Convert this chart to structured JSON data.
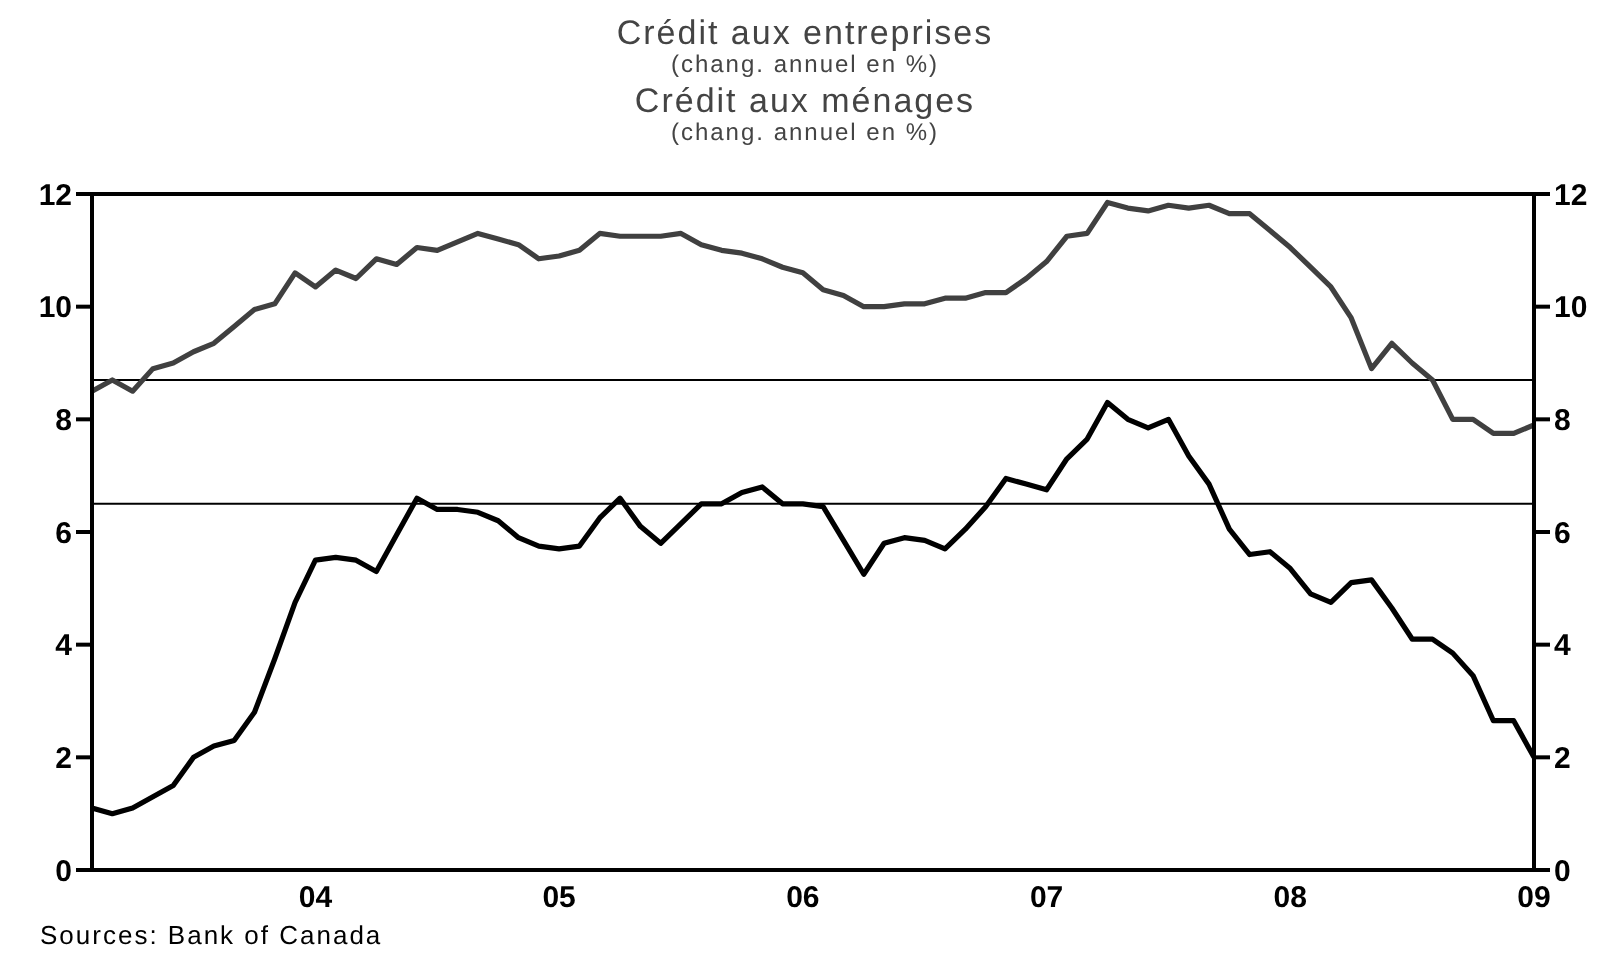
{
  "chart_data": {
    "type": "line",
    "title": "Crédit aux entreprises",
    "subtitle": "(chang. annuel en %)",
    "annotations": [
      "Crédit aux ménages",
      "(chang. annuel en %)",
      "Sources:  Bank of Canada"
    ],
    "x": [
      "2003-02",
      "2003-03",
      "2003-04",
      "2003-05",
      "2003-06",
      "2003-07",
      "2003-08",
      "2003-09",
      "2003-10",
      "2003-11",
      "2003-12",
      "2004-01",
      "2004-02",
      "2004-03",
      "2004-04",
      "2004-05",
      "2004-06",
      "2004-07",
      "2004-08",
      "2004-09",
      "2004-10",
      "2004-11",
      "2004-12",
      "2005-01",
      "2005-02",
      "2005-03",
      "2005-04",
      "2005-05",
      "2005-06",
      "2005-07",
      "2005-08",
      "2005-09",
      "2005-10",
      "2005-11",
      "2005-12",
      "2006-01",
      "2006-02",
      "2006-03",
      "2006-04",
      "2006-05",
      "2006-06",
      "2006-07",
      "2006-08",
      "2006-09",
      "2006-10",
      "2006-11",
      "2006-12",
      "2007-01",
      "2007-02",
      "2007-03",
      "2007-04",
      "2007-05",
      "2007-06",
      "2007-07",
      "2007-08",
      "2007-09",
      "2007-10",
      "2007-11",
      "2007-12",
      "2008-01",
      "2008-02",
      "2008-03",
      "2008-04",
      "2008-05",
      "2008-06",
      "2008-07",
      "2008-08",
      "2008-09",
      "2008-10",
      "2008-11",
      "2008-12",
      "2009-01"
    ],
    "series": [
      {
        "color": "#404040",
        "values": [
          8.5,
          8.7,
          8.5,
          8.9,
          9.0,
          9.2,
          9.35,
          9.65,
          9.95,
          10.05,
          10.6,
          10.35,
          10.65,
          10.5,
          10.85,
          10.75,
          11.05,
          11.0,
          11.15,
          11.3,
          11.2,
          11.1,
          10.85,
          10.9,
          11.0,
          11.3,
          11.25,
          11.25,
          11.25,
          11.3,
          11.1,
          11.0,
          10.95,
          10.85,
          10.7,
          10.6,
          10.3,
          10.2,
          10.0,
          10.0,
          10.05,
          10.05,
          10.15,
          10.15,
          10.25,
          10.25,
          10.5,
          10.8,
          11.25,
          11.3,
          11.85,
          11.75,
          11.7,
          11.8,
          11.75,
          11.8,
          11.65,
          11.65,
          11.35,
          11.05,
          10.7,
          10.35,
          9.8,
          8.9,
          9.35,
          9.0,
          8.7,
          8.0,
          8.0,
          7.75,
          7.75,
          7.9
        ]
      },
      {
        "color": "#000000",
        "values": [
          1.1,
          1.0,
          1.1,
          1.3,
          1.5,
          2.0,
          2.2,
          2.3,
          2.8,
          3.75,
          4.75,
          5.5,
          5.55,
          5.5,
          5.3,
          5.95,
          6.6,
          6.4,
          6.4,
          6.35,
          6.2,
          5.9,
          5.75,
          5.7,
          5.75,
          6.25,
          6.6,
          6.1,
          5.8,
          6.15,
          6.5,
          6.5,
          6.7,
          6.8,
          6.5,
          6.5,
          6.45,
          5.85,
          5.25,
          5.8,
          5.9,
          5.85,
          5.7,
          6.05,
          6.45,
          6.95,
          6.85,
          6.75,
          7.3,
          7.65,
          8.3,
          8.0,
          7.85,
          8.0,
          7.35,
          6.85,
          6.05,
          5.6,
          5.65,
          5.35,
          4.9,
          4.75,
          5.1,
          5.15,
          4.65,
          4.1,
          4.1,
          3.85,
          3.45,
          2.65,
          2.65,
          2.0
        ]
      }
    ],
    "xlim": [
      "2003-02",
      "2009-01"
    ],
    "xticks": [
      {
        "value": "2004-01",
        "label": "04"
      },
      {
        "value": "2005-01",
        "label": "05"
      },
      {
        "value": "2006-01",
        "label": "06"
      },
      {
        "value": "2007-01",
        "label": "07"
      },
      {
        "value": "2008-01",
        "label": "08"
      },
      {
        "value": "2009-01",
        "label": "09"
      }
    ],
    "ylim": [
      0,
      12
    ],
    "yticks": [
      0,
      2,
      4,
      6,
      8,
      10,
      12
    ],
    "y2lim": [
      0,
      12
    ],
    "y2ticks": [
      0,
      2,
      4,
      6,
      8,
      10,
      12
    ],
    "ref_lines": [
      {
        "axis": "y",
        "value": 8.7,
        "color": "#000000"
      },
      {
        "axis": "y",
        "value": 6.5,
        "color": "#000000"
      }
    ]
  }
}
